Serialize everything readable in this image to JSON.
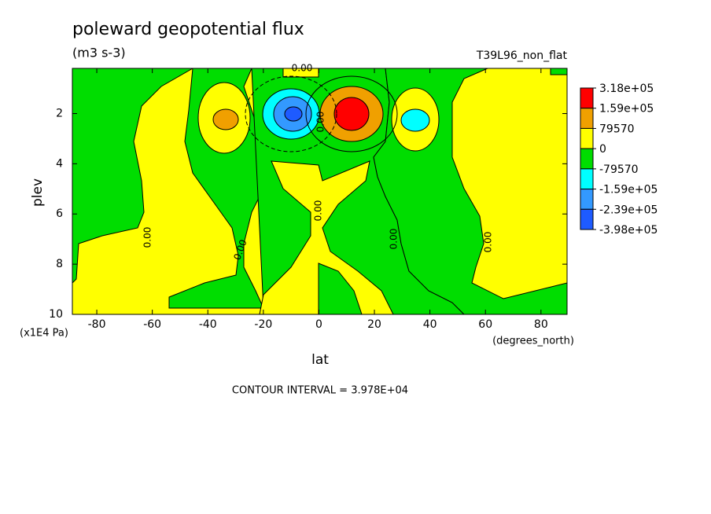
{
  "chart_data": {
    "type": "contour",
    "title": "poleward geopotential flux",
    "subtitle": "(m3 s-3)",
    "run_label": "T39L96_non_flat",
    "x_label": "lat",
    "x_unit": "(degrees_north)",
    "y_label": "plev",
    "y_unit": "(x1E4 Pa)",
    "annotation": "CONTOUR INTERVAL = 3.978E+04",
    "contour_label": "0.00",
    "xlim": [
      -88.8,
      89.4
    ],
    "xticks": [
      -80,
      -60,
      -40,
      -20,
      0,
      20,
      40,
      60,
      80
    ],
    "ylim": [
      0.2,
      10
    ],
    "yticks": [
      2,
      4,
      6,
      8,
      10
    ],
    "colorbar": {
      "colors": [
        "#ff0000",
        "#f0a000",
        "#ffff00",
        "#00dd00",
        "#00ffff",
        "#3399ff",
        "#1e5bff"
      ],
      "ticks": [
        {
          "value": 318000,
          "label": "3.18e+05"
        },
        {
          "value": 159000,
          "label": "1.59e+05"
        },
        79570,
        0,
        -79570,
        {
          "value": -159000,
          "label": "-1.59e+05"
        },
        {
          "value": -239000,
          "label": "-2.39e+05"
        },
        {
          "value": -398000,
          "label": "-3.98e+05"
        }
      ]
    }
  }
}
